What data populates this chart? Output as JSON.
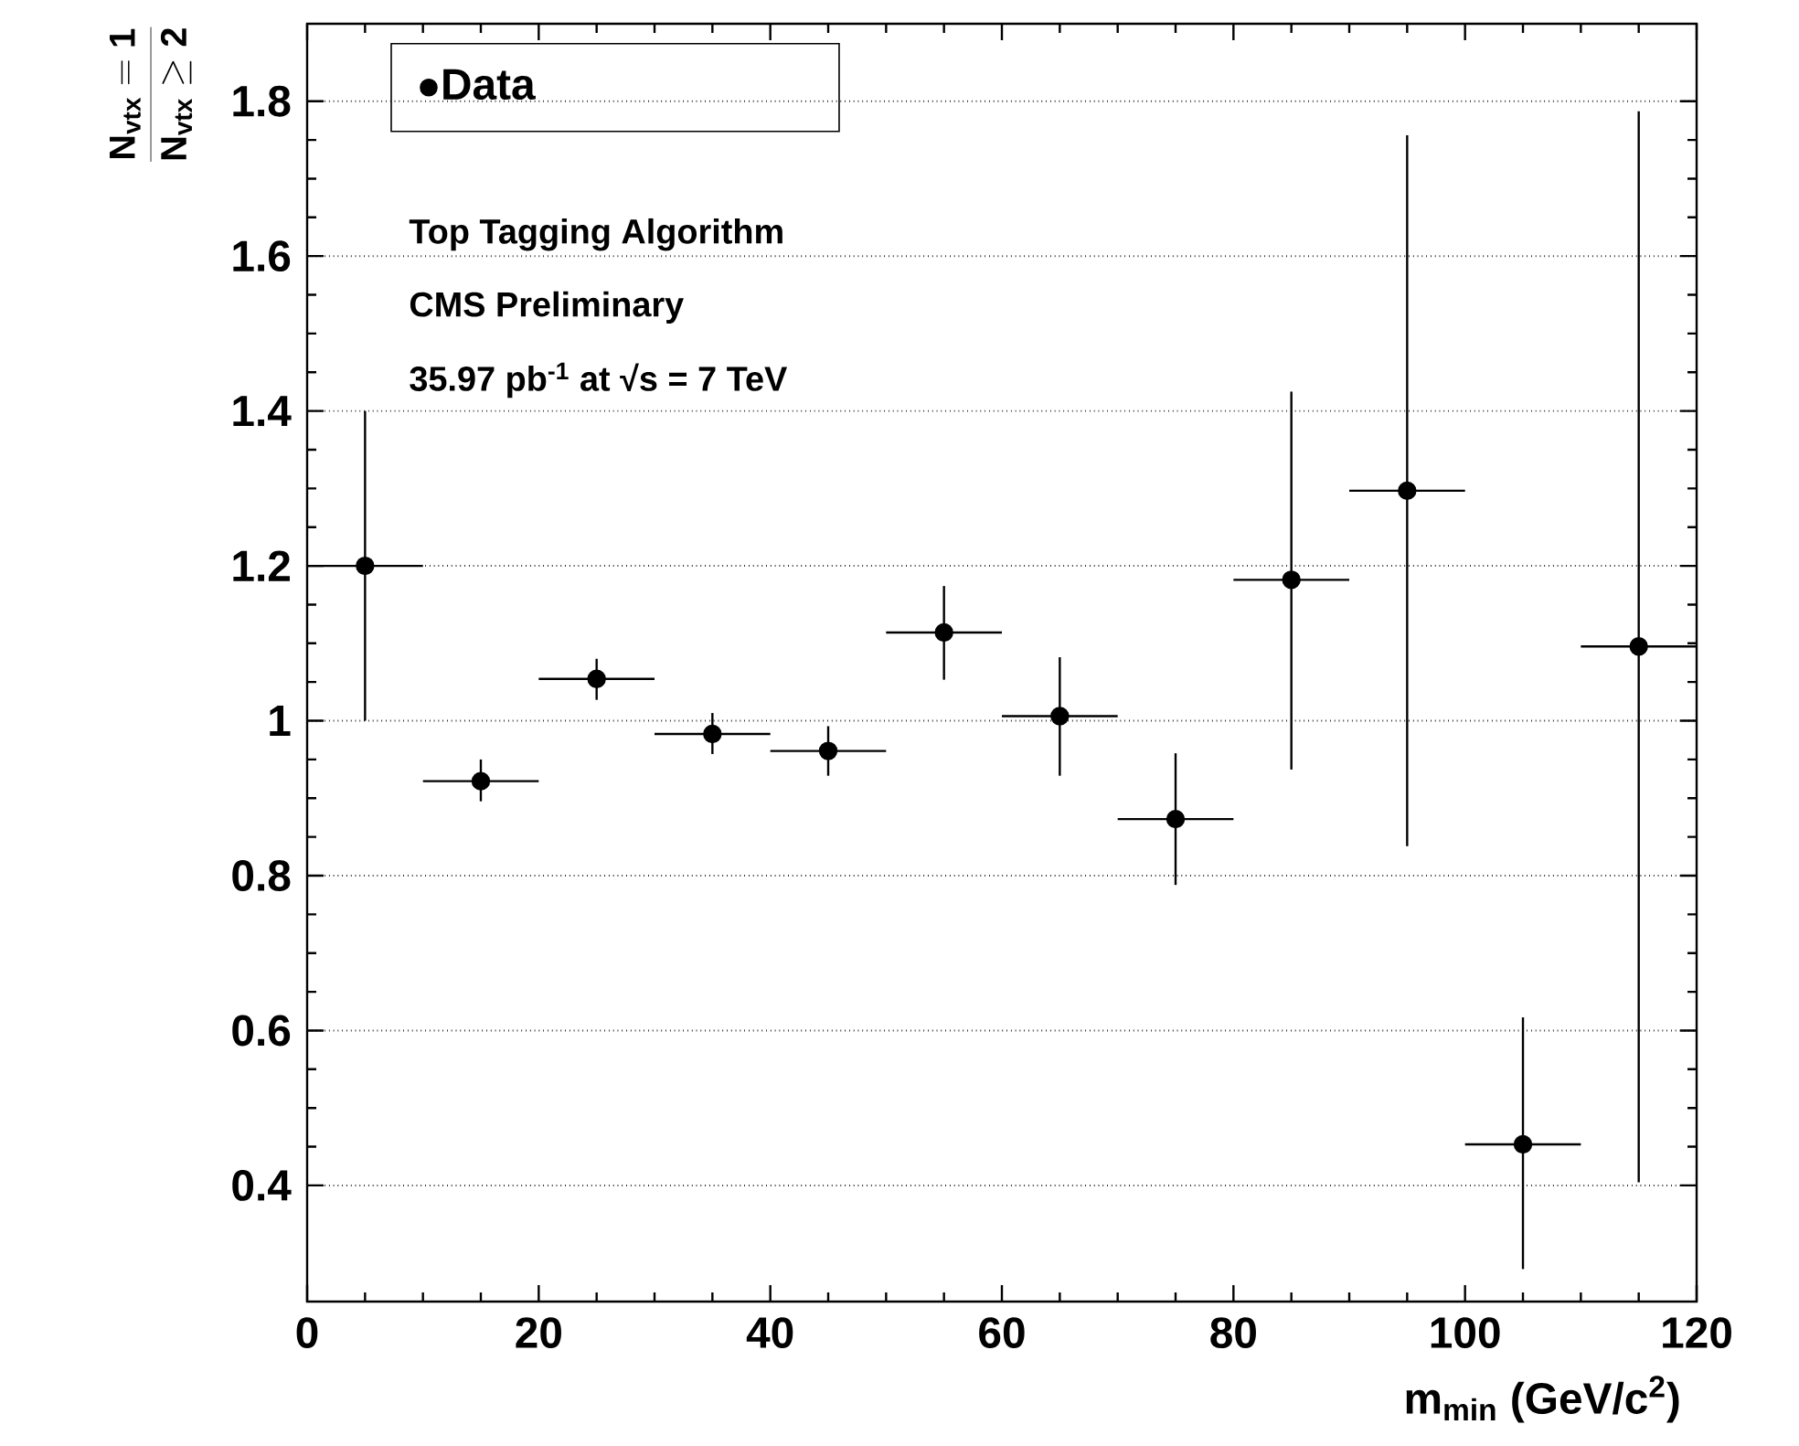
{
  "chart_data": {
    "type": "scatter",
    "xlabel": "m$_{min}$ (GeV/c$^{2}$)",
    "ylabel": "\\frac{\\mathbf{N_{vtx}=1}}{\\mathbf{N_{vtx}\\geq 2}}",
    "x": [
      5,
      15,
      25,
      35,
      45,
      55,
      65,
      75,
      85,
      95,
      105,
      115
    ],
    "series": [
      {
        "name": "Data",
        "color": "#000000",
        "values": [
          1.2,
          0.922,
          1.054,
          0.983,
          0.961,
          1.114,
          1.006,
          0.873,
          1.182,
          1.297,
          0.453,
          1.096
        ],
        "errors": [
          [
            1.0,
            1.4
          ],
          [
            0.896,
            0.95
          ],
          [
            1.027,
            1.08
          ],
          [
            0.957,
            1.01
          ],
          [
            0.929,
            0.993
          ],
          [
            1.053,
            1.174
          ],
          [
            0.929,
            1.082
          ],
          [
            0.788,
            0.958
          ],
          [
            0.937,
            1.425
          ],
          [
            0.838,
            1.756
          ],
          [
            0.292,
            0.617
          ],
          [
            0.404,
            1.787
          ]
        ],
        "xerrors": [
          5,
          5,
          5,
          5,
          5,
          5,
          5,
          5,
          5,
          5,
          5,
          5
        ]
      }
    ],
    "xlim": [
      0,
      120
    ],
    "ylim": [
      0.25,
      1.9
    ],
    "xticks": [
      0,
      20,
      40,
      60,
      80,
      100,
      120
    ],
    "yticks": [
      0.4,
      0.6,
      0.8,
      1,
      1.2,
      1.4,
      1.6,
      1.8
    ],
    "grid": "y",
    "legend": "top left",
    "marker": "circle",
    "annotations": [
      "Top Tagging Algorithm",
      "CMS Preliminary",
      "35.97 pb$^{-1}$ at √s = 7 TeV"
    ]
  }
}
